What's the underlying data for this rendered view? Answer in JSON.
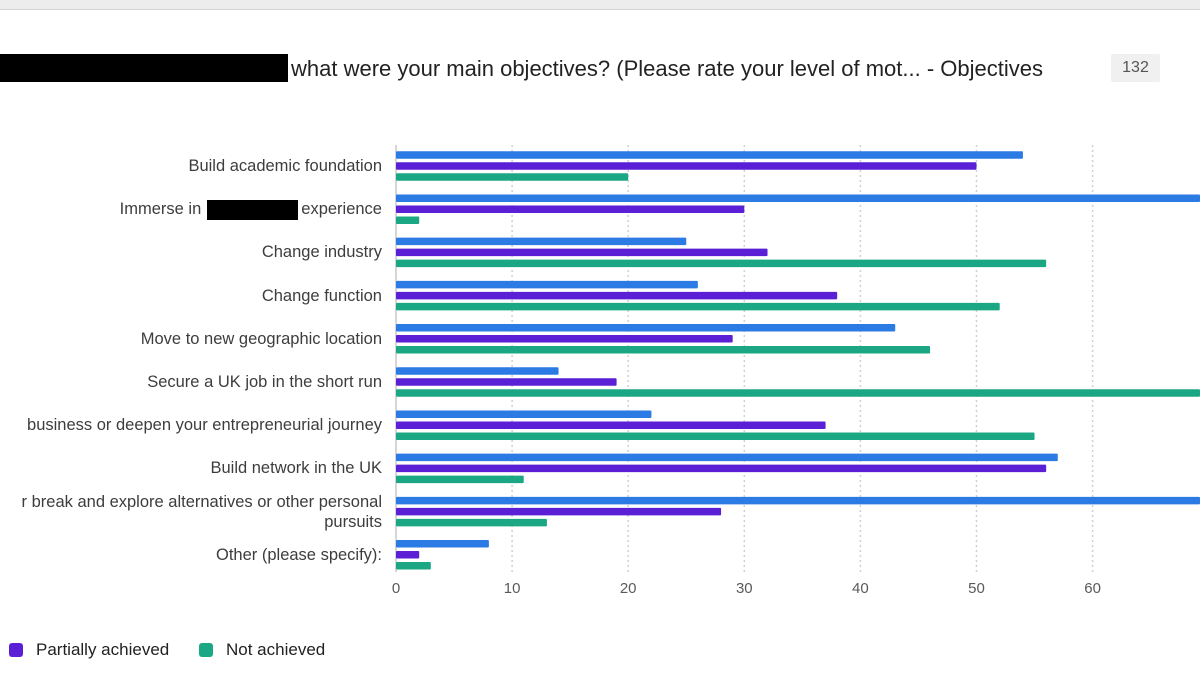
{
  "title": "what were your main objectives? (Please rate your level of mot... - Objectives",
  "response_count": "132",
  "colors": {
    "achieved": "#2c7be5",
    "partially_achieved": "#5b1fd6",
    "not_achieved": "#1ba784",
    "grid": "#d0d0d0",
    "axis": "#c9c9c9"
  },
  "legend": [
    {
      "key": "achieved",
      "label": ""
    },
    {
      "key": "partially_achieved",
      "label": "Partially achieved"
    },
    {
      "key": "not_achieved",
      "label": "Not achieved"
    }
  ],
  "chart_data": {
    "type": "bar",
    "orientation": "horizontal",
    "xlim": [
      0,
      70
    ],
    "xticks": [
      0,
      10,
      20,
      30,
      40,
      50,
      60
    ],
    "grid": true,
    "legend_position": "bottom-left",
    "categories": [
      {
        "label": "Build academic foundation"
      },
      {
        "label_parts": [
          "Immerse in",
          "experience"
        ],
        "redacted": true
      },
      {
        "label": "Change industry"
      },
      {
        "label": "Change function"
      },
      {
        "label": "Move to new geographic location"
      },
      {
        "label": "Secure a UK job in the short run"
      },
      {
        "label": "business or deepen your entrepreneurial journey"
      },
      {
        "label": "Build network in the UK"
      },
      {
        "label_lines": [
          "r break and explore alternatives or other personal",
          "pursuits"
        ]
      },
      {
        "label": "Other (please specify):"
      }
    ],
    "series": [
      {
        "key": "achieved",
        "values": [
          54,
          72,
          25,
          26,
          43,
          14,
          22,
          57,
          72,
          8
        ]
      },
      {
        "key": "partially_achieved",
        "name": "Partially achieved",
        "values": [
          50,
          30,
          32,
          38,
          29,
          19,
          37,
          56,
          28,
          2
        ]
      },
      {
        "key": "not_achieved",
        "name": "Not achieved",
        "values": [
          20,
          2,
          56,
          52,
          46,
          72,
          55,
          11,
          13,
          3
        ]
      }
    ]
  }
}
